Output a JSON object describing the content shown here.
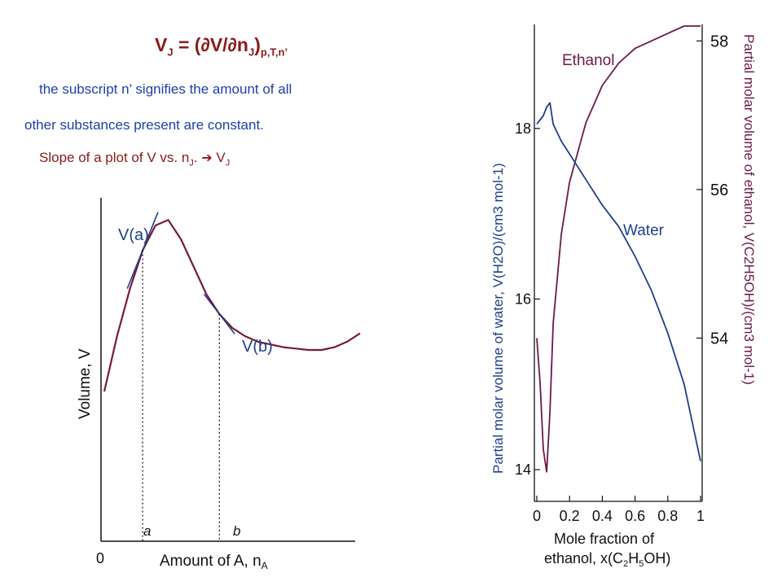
{
  "text": {
    "equation": "V",
    "equation_sub_J": "J",
    "equation_mid": " = (∂V/∂n",
    "equation_sub_J2": "J",
    "equation_close": ")",
    "equation_sub_cond": "p,T,n’",
    "note_line1": "the subscript n’ signifies the amount of all",
    "note_line2": "other substances present are constant.",
    "slope_text": "Slope of a plot of V vs. n",
    "slope_sub_J": "J",
    "slope_after": ".",
    "slope_arrow": "➔",
    "slope_result": "V",
    "slope_result_sub": "J"
  },
  "chart_data": [
    {
      "type": "line",
      "title": "",
      "xlabel": "Amount of A, n",
      "xlabel_sub": "A",
      "ylabel": "Volume, V",
      "origin_label": "0",
      "x_tick_labels": [
        "a",
        "b"
      ],
      "series": [
        {
          "x": [
            0,
            0.05,
            0.1,
            0.15,
            0.2,
            0.25,
            0.3,
            0.35,
            0.4,
            0.45,
            0.5,
            0.55,
            0.6,
            0.65,
            0.7,
            0.75,
            0.8,
            0.85,
            0.9,
            0.95,
            1.0
          ],
          "y": [
            0.35,
            0.55,
            0.72,
            0.86,
            0.95,
            0.97,
            0.9,
            0.8,
            0.7,
            0.63,
            0.58,
            0.55,
            0.53,
            0.52,
            0.51,
            0.505,
            0.5,
            0.5,
            0.51,
            0.53,
            0.56
          ]
        }
      ],
      "tangents": [
        {
          "label": "V(a)",
          "at_x": 0.15
        },
        {
          "label": "V(b)",
          "at_x": 0.45
        }
      ],
      "xlim": [
        0,
        1
      ],
      "ylim": [
        0,
        1
      ]
    },
    {
      "type": "line",
      "xlabel": "Mole fraction of",
      "xlabel2": "ethanol, x(C",
      "xlabel2_sub1": "2",
      "xlabel2_mid": "H",
      "xlabel2_sub2": "5",
      "xlabel2_end": "OH)",
      "ylabel_left": "Partial molar volume of water, V(H2O)/(cm3 mol-1)",
      "ylabel_right": "Partial molar volume of ethanol, V(C2H5OH)/(cm3 mol-1)",
      "x_ticks": [
        "0",
        "0.2",
        "0.4",
        "0.6",
        "0.8",
        "1"
      ],
      "y_left_ticks": [
        "14",
        "16",
        "18"
      ],
      "y_right_ticks": [
        "54",
        "56",
        "58"
      ],
      "xlim": [
        0,
        1
      ],
      "ylim_left": [
        13.8,
        19.2
      ],
      "ylim_right": [
        52.0,
        58.2
      ],
      "series": [
        {
          "name": "Ethanol",
          "axis": "right",
          "x": [
            0,
            0.02,
            0.04,
            0.06,
            0.08,
            0.1,
            0.15,
            0.2,
            0.3,
            0.4,
            0.5,
            0.6,
            0.7,
            0.8,
            0.9,
            1.0
          ],
          "y": [
            54.0,
            53.4,
            52.5,
            52.2,
            53.0,
            54.2,
            55.4,
            56.1,
            56.9,
            57.4,
            57.7,
            57.9,
            58.0,
            58.1,
            58.2,
            58.2
          ]
        },
        {
          "name": "Water",
          "axis": "left",
          "x": [
            0,
            0.02,
            0.04,
            0.06,
            0.08,
            0.1,
            0.15,
            0.2,
            0.3,
            0.4,
            0.5,
            0.6,
            0.7,
            0.8,
            0.9,
            1.0
          ],
          "y": [
            18.05,
            18.1,
            18.15,
            18.25,
            18.3,
            18.05,
            17.85,
            17.7,
            17.4,
            17.1,
            16.85,
            16.5,
            16.1,
            15.6,
            15.0,
            14.1
          ]
        }
      ]
    }
  ]
}
